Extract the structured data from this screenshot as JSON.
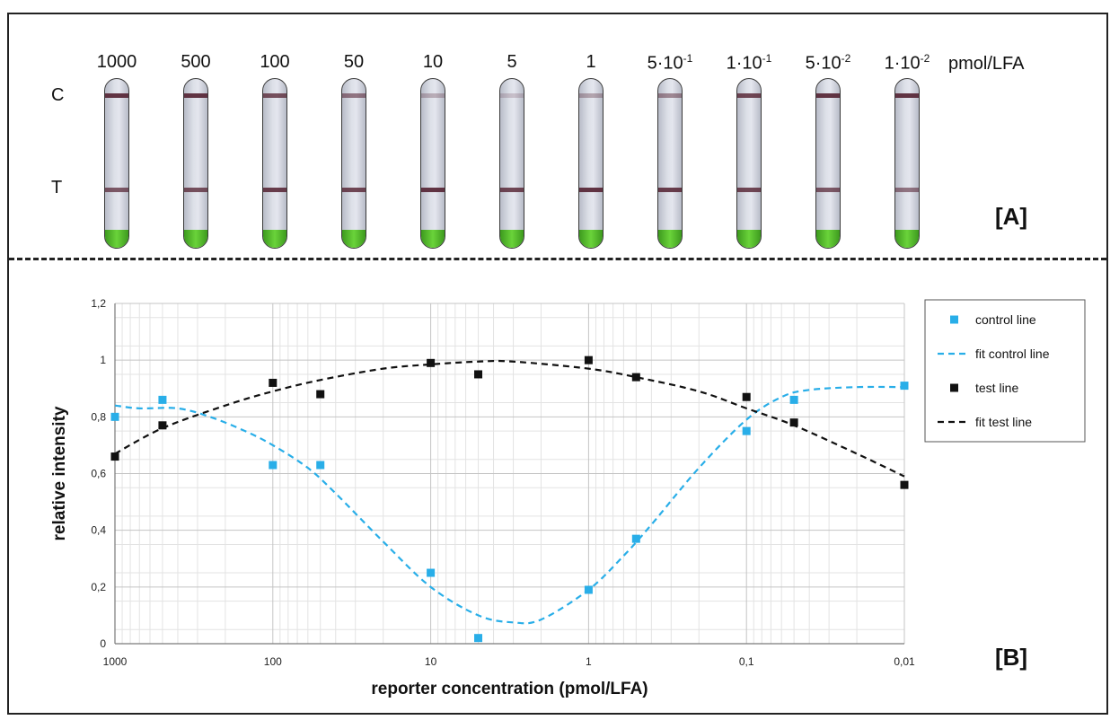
{
  "panel_a": {
    "tag": "[A]",
    "unit_label": "pmol/LFA",
    "row_c": "C",
    "row_t": "T",
    "strips": [
      {
        "base": "1000",
        "exp": "",
        "c": 0.95,
        "t": 0.75
      },
      {
        "base": "500",
        "exp": "",
        "c": 0.95,
        "t": 0.8
      },
      {
        "base": "100",
        "exp": "",
        "c": 0.8,
        "t": 0.9
      },
      {
        "base": "50",
        "exp": "",
        "c": 0.6,
        "t": 0.85
      },
      {
        "base": "10",
        "exp": "",
        "c": 0.3,
        "t": 0.95
      },
      {
        "base": "5",
        "exp": "",
        "c": 0.2,
        "t": 0.85
      },
      {
        "base": "1",
        "exp": "",
        "c": 0.35,
        "t": 0.95
      },
      {
        "base": "5·10",
        "exp": "-1",
        "c": 0.5,
        "t": 0.9
      },
      {
        "base": "1·10",
        "exp": "-1",
        "c": 0.85,
        "t": 0.85
      },
      {
        "base": "5·10",
        "exp": "-2",
        "c": 0.95,
        "t": 0.75
      },
      {
        "base": "1·10",
        "exp": "-2",
        "c": 0.95,
        "t": 0.6
      }
    ],
    "colors": {
      "line": "#5a2a3a",
      "pad": "#4fbf2a"
    }
  },
  "panel_b": {
    "tag": "[B]"
  },
  "chart_data": {
    "type": "scatter",
    "xlabel": "reporter concentration (pmol/LFA)",
    "ylabel": "relative  intensity",
    "x_scale": "log",
    "x_reversed": true,
    "xlim": [
      0.01,
      1000
    ],
    "ylim": [
      0,
      1.2
    ],
    "x_ticks": [
      1000,
      100,
      10,
      1,
      0.1,
      0.01
    ],
    "x_tick_labels": [
      "1000",
      "100",
      "10",
      "1",
      "0,1",
      "0,01"
    ],
    "y_ticks": [
      0,
      0.2,
      0.4,
      0.6,
      0.8,
      1.0,
      1.2
    ],
    "y_tick_labels": [
      "0",
      "0,2",
      "0,4",
      "0,6",
      "0,8",
      "1",
      "1,2"
    ],
    "grid": true,
    "legend_position": "right",
    "series": [
      {
        "name": "control line",
        "kind": "points",
        "color": "#29aee8",
        "x": [
          1000,
          500,
          100,
          50,
          10,
          5,
          1,
          0.5,
          0.1,
          0.05,
          0.01
        ],
        "y": [
          0.8,
          0.86,
          0.63,
          0.63,
          0.25,
          0.02,
          0.19,
          0.37,
          0.75,
          0.86,
          0.91
        ]
      },
      {
        "name": "fit control line",
        "kind": "fit",
        "color": "#29aee8",
        "x": [
          1000,
          700,
          400,
          250,
          150,
          100,
          60,
          40,
          20,
          10,
          5,
          3,
          2,
          1,
          0.6,
          0.4,
          0.2,
          0.1,
          0.06,
          0.04,
          0.02,
          0.01
        ],
        "y": [
          0.84,
          0.83,
          0.83,
          0.8,
          0.75,
          0.7,
          0.62,
          0.53,
          0.36,
          0.2,
          0.1,
          0.075,
          0.085,
          0.19,
          0.31,
          0.42,
          0.62,
          0.79,
          0.87,
          0.895,
          0.905,
          0.905
        ]
      },
      {
        "name": "test line",
        "kind": "points",
        "color": "#111111",
        "x": [
          1000,
          500,
          100,
          50,
          10,
          5,
          1,
          0.5,
          0.1,
          0.05,
          0.01
        ],
        "y": [
          0.66,
          0.77,
          0.92,
          0.88,
          0.99,
          0.95,
          1.0,
          0.94,
          0.87,
          0.78,
          0.56
        ]
      },
      {
        "name": "fit test line",
        "kind": "fit",
        "color": "#111111",
        "x": [
          1000,
          500,
          200,
          100,
          50,
          20,
          10,
          5,
          3,
          1,
          0.5,
          0.2,
          0.1,
          0.05,
          0.02,
          0.01
        ],
        "y": [
          0.67,
          0.76,
          0.84,
          0.89,
          0.93,
          0.97,
          0.985,
          0.995,
          0.995,
          0.97,
          0.94,
          0.89,
          0.83,
          0.77,
          0.67,
          0.59
        ]
      }
    ]
  }
}
